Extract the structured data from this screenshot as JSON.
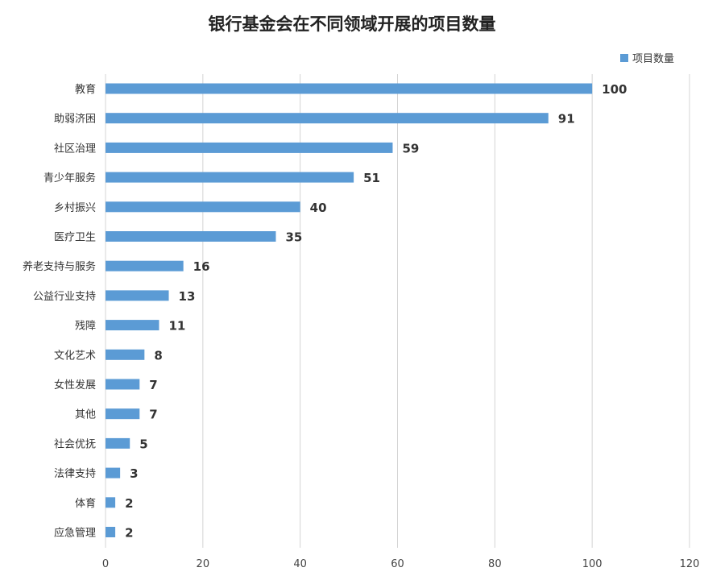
{
  "chart_data": {
    "type": "bar",
    "orientation": "horizontal",
    "title": "银行基金会在不同领域开展的项目数量",
    "xlabel": "",
    "ylabel": "",
    "xlim": [
      0,
      120
    ],
    "x_ticks": [
      0,
      20,
      40,
      60,
      80,
      100,
      120
    ],
    "grid": true,
    "legend_position": "top-right",
    "categories": [
      "教育",
      "助弱济困",
      "社区治理",
      "青少年服务",
      "乡村振兴",
      "医疗卫生",
      "养老支持与服务",
      "公益行业支持",
      "残障",
      "文化艺术",
      "女性发展",
      "其他",
      "社会优抚",
      "法律支持",
      "体育",
      "应急管理"
    ],
    "series": [
      {
        "name": "项目数量",
        "color": "#5b9bd5",
        "values": [
          100,
          91,
          59,
          51,
          40,
          35,
          16,
          13,
          11,
          8,
          7,
          7,
          5,
          3,
          2,
          2
        ]
      }
    ]
  }
}
